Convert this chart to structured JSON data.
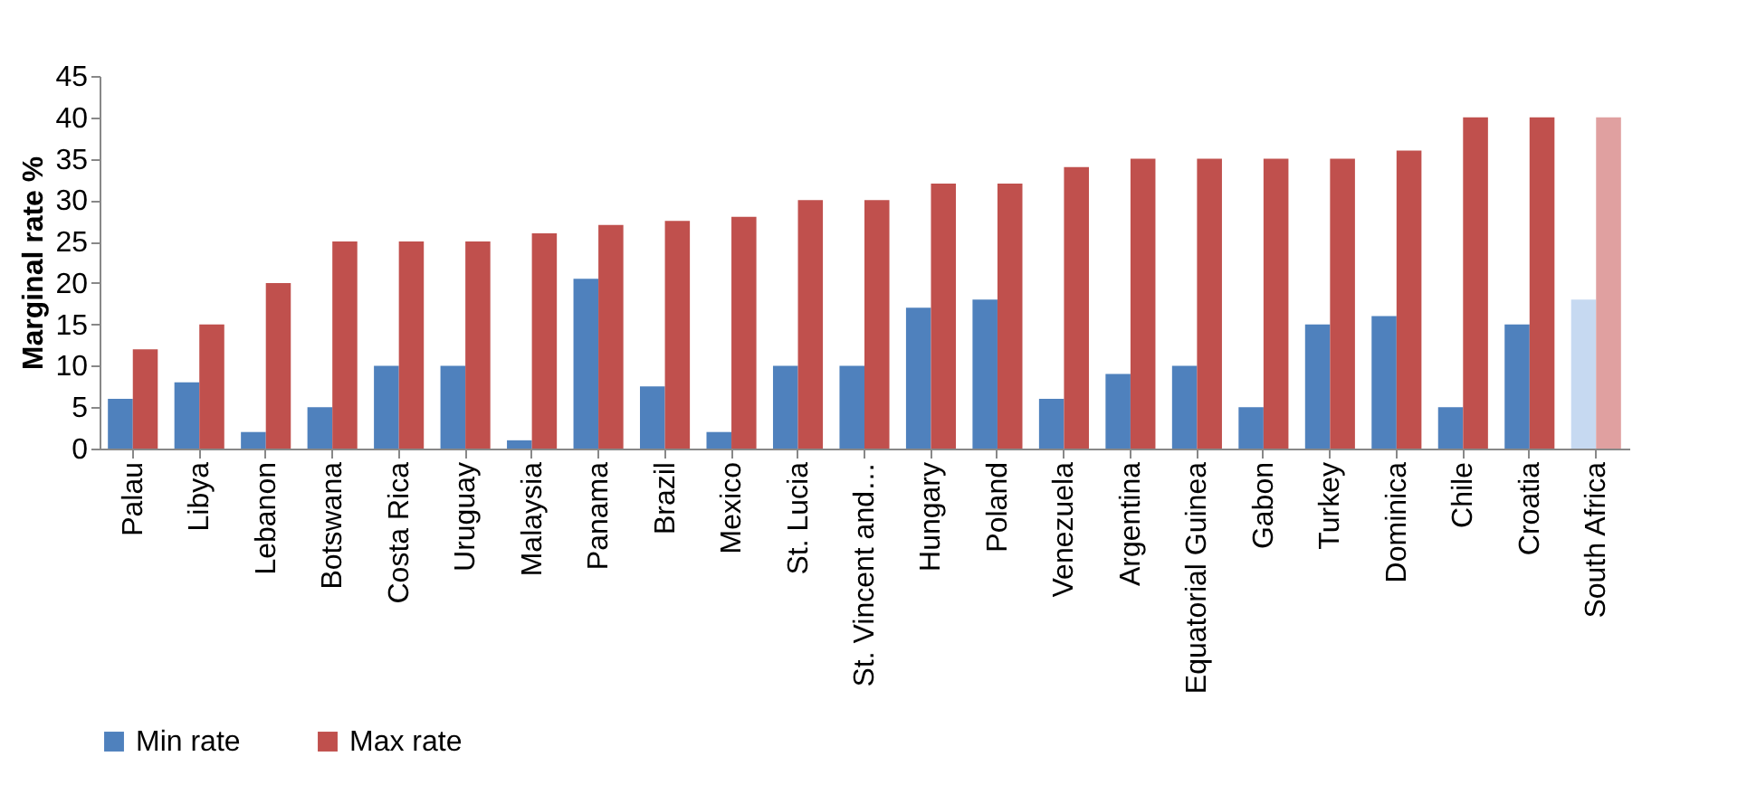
{
  "chart_data": {
    "type": "bar",
    "ylabel": "Marginal rate %",
    "categories": [
      "Palau",
      "Libya",
      "Lebanon",
      "Botswana",
      "Costa Rica",
      "Uruguay",
      "Malaysia",
      "Panama",
      "Brazil",
      "Mexico",
      "St. Lucia",
      "St. Vincent and…",
      "Hungary",
      "Poland",
      "Venezuela",
      "Argentina",
      "Equatorial Guinea",
      "Gabon",
      "Turkey",
      "Dominica",
      "Chile",
      "Croatia",
      "South Africa"
    ],
    "series": [
      {
        "name": "Min rate",
        "color": "#4f81bd",
        "colors": [
          "#4f81bd",
          "#4f81bd",
          "#4f81bd",
          "#4f81bd",
          "#4f81bd",
          "#4f81bd",
          "#4f81bd",
          "#4f81bd",
          "#4f81bd",
          "#4f81bd",
          "#4f81bd",
          "#4f81bd",
          "#4f81bd",
          "#4f81bd",
          "#4f81bd",
          "#4f81bd",
          "#4f81bd",
          "#4f81bd",
          "#4f81bd",
          "#4f81bd",
          "#4f81bd",
          "#4f81bd",
          "#c6d9f1"
        ],
        "values": [
          6,
          8,
          2,
          5,
          10,
          10,
          1,
          20.5,
          7.5,
          2,
          10,
          10,
          17,
          18,
          6,
          9,
          10,
          5,
          15,
          16,
          5,
          15,
          18
        ]
      },
      {
        "name": "Max rate",
        "color": "#c0504d",
        "colors": [
          "#c0504d",
          "#c0504d",
          "#c0504d",
          "#c0504d",
          "#c0504d",
          "#c0504d",
          "#c0504d",
          "#c0504d",
          "#c0504d",
          "#c0504d",
          "#c0504d",
          "#c0504d",
          "#c0504d",
          "#c0504d",
          "#c0504d",
          "#c0504d",
          "#c0504d",
          "#c0504d",
          "#c0504d",
          "#c0504d",
          "#c0504d",
          "#c0504d",
          "#e0a0a0"
        ],
        "values": [
          12,
          15,
          20,
          25,
          25,
          25,
          26,
          27,
          27.5,
          28,
          30,
          30,
          32,
          32,
          34,
          35,
          35,
          35,
          35,
          36,
          40,
          40,
          40
        ]
      }
    ],
    "ylim": [
      0,
      45
    ],
    "yticks": [
      0,
      5,
      10,
      15,
      20,
      25,
      30,
      35,
      40,
      45
    ],
    "grid": false,
    "legend": "bottom"
  }
}
